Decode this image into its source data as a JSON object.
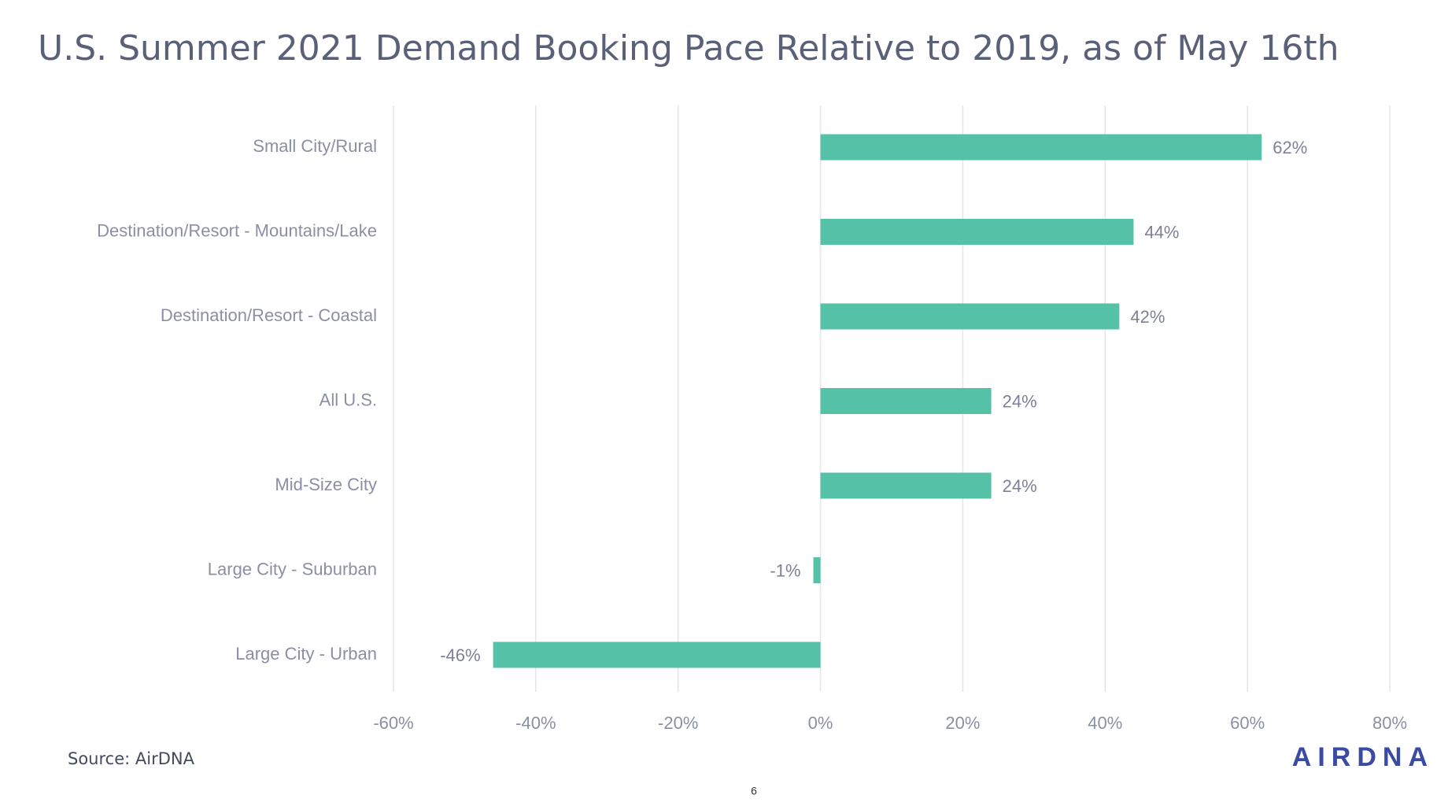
{
  "chart_data": {
    "type": "barh",
    "title": "U.S. Summer 2021 Demand Booking Pace Relative to 2019, as of May 16th",
    "categories": [
      "Small City/Rural",
      "Destination/Resort - Mountains/Lake",
      "Destination/Resort - Coastal",
      "All U.S.",
      "Mid-Size City",
      "Large City - Suburban",
      "Large City - Urban"
    ],
    "values": [
      62,
      44,
      42,
      24,
      24,
      -1,
      -46
    ],
    "value_labels": [
      "62%",
      "44%",
      "42%",
      "24%",
      "24%",
      "-1%",
      "-46%"
    ],
    "color": "#55c1a6",
    "xlim": [
      -60,
      80
    ],
    "xticks": [
      {
        "value": -60,
        "label": "-60%"
      },
      {
        "value": -40,
        "label": "-40%"
      },
      {
        "value": -20,
        "label": "-20%"
      },
      {
        "value": 0,
        "label": "0%"
      },
      {
        "value": 20,
        "label": "20%"
      },
      {
        "value": 40,
        "label": "40%"
      },
      {
        "value": 60,
        "label": "60%"
      },
      {
        "value": 80,
        "label": "80%"
      }
    ],
    "grid": true
  },
  "source": "Source: AirDNA",
  "logo": "AIRDNA",
  "page_number": "6"
}
